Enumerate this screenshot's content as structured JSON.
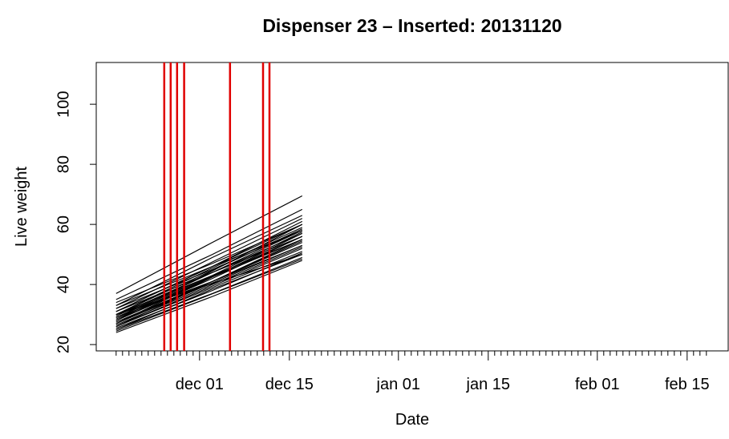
{
  "chart_data": {
    "type": "line",
    "title": "Dispenser 23 – Inserted: 20131120",
    "x_label": "Date",
    "y_label": "Live weight",
    "x": [
      -13,
      2,
      16
    ],
    "series": [
      {
        "color": "#000000",
        "values": [
          37,
          54,
          69.5
        ]
      },
      {
        "color": "#000000",
        "values": [
          35,
          50,
          65
        ]
      },
      {
        "color": "#000000",
        "values": [
          33,
          49,
          63
        ]
      },
      {
        "color": "#000000",
        "values": [
          32,
          47.5,
          62
        ]
      },
      {
        "color": "#000000",
        "values": [
          31,
          46,
          61
        ]
      },
      {
        "color": "#000000",
        "values": [
          31,
          46,
          60
        ]
      },
      {
        "color": "#000000",
        "values": [
          30,
          45.5,
          59
        ]
      },
      {
        "color": "#000000",
        "values": [
          30,
          44.7,
          58.5
        ]
      },
      {
        "color": "#000000",
        "values": [
          29.5,
          44,
          58
        ]
      },
      {
        "color": "#000000",
        "values": [
          29,
          43,
          57.5
        ]
      },
      {
        "color": "#000000",
        "values": [
          29,
          44,
          57
        ]
      },
      {
        "color": "#000000",
        "values": [
          28.5,
          42.7,
          56
        ]
      },
      {
        "color": "#000000",
        "values": [
          28,
          42,
          56
        ]
      },
      {
        "color": "#000000",
        "values": [
          28,
          42.5,
          55
        ]
      },
      {
        "color": "#000000",
        "values": [
          27.5,
          41,
          54.5
        ]
      },
      {
        "color": "#000000",
        "values": [
          27,
          41,
          54
        ]
      },
      {
        "color": "#000000",
        "values": [
          27,
          40.5,
          53
        ]
      },
      {
        "color": "#000000",
        "values": [
          26.5,
          40,
          52.5
        ]
      },
      {
        "color": "#000000",
        "values": [
          26,
          39.5,
          52
        ]
      },
      {
        "color": "#000000",
        "values": [
          26,
          39,
          51
        ]
      },
      {
        "color": "#000000",
        "values": [
          25.5,
          38,
          50.5
        ]
      },
      {
        "color": "#000000",
        "values": [
          25,
          38.5,
          50
        ]
      },
      {
        "color": "#000000",
        "values": [
          25,
          37,
          49
        ]
      },
      {
        "color": "#000000",
        "values": [
          24.5,
          36.9,
          48.5
        ]
      },
      {
        "color": "#000000",
        "values": [
          24,
          36,
          48
        ]
      },
      {
        "color": "#000000",
        "values": [
          33,
          46,
          58
        ]
      },
      {
        "color": "#000000",
        "values": [
          30,
          43,
          55
        ]
      },
      {
        "color": "#000000",
        "values": [
          28,
          44.5,
          60
        ]
      },
      {
        "color": "#000000",
        "values": [
          27,
          42.5,
          57
        ]
      },
      {
        "color": "#000000",
        "values": [
          32,
          45,
          58
        ]
      },
      {
        "color": "#000000",
        "values": [
          29,
          41,
          53
        ]
      },
      {
        "color": "#000000",
        "values": [
          31,
          44,
          56
        ]
      },
      {
        "color": "#000000",
        "values": [
          26,
          41,
          55
        ]
      },
      {
        "color": "#000000",
        "values": [
          34,
          47,
          60
        ]
      },
      {
        "color": "#000000",
        "values": [
          30,
          40.3,
          50
        ]
      }
    ],
    "vlines": {
      "color": "#e00000",
      "x": [
        -5.5,
        -4.5,
        -3.5,
        -2.4,
        4.75,
        9.9,
        10.9
      ]
    },
    "xlim": [
      -16.1,
      82.4
    ],
    "xticks": [
      {
        "value": 0,
        "label": "dec 01"
      },
      {
        "value": 14,
        "label": "dec 15"
      },
      {
        "value": 31,
        "label": "jan 01"
      },
      {
        "value": 45,
        "label": "jan 15"
      },
      {
        "value": 62,
        "label": "feb 01"
      },
      {
        "value": 76,
        "label": "feb 15"
      }
    ],
    "xminorticks": [
      -13,
      -12,
      -11,
      -10,
      -9,
      -8,
      -7,
      -6,
      -5,
      -4,
      -3,
      -2,
      -1,
      1,
      2,
      3,
      4,
      5,
      6,
      7,
      8,
      9,
      10,
      11,
      12,
      13,
      15,
      16,
      17,
      18,
      19,
      20,
      21,
      22,
      23,
      24,
      25,
      26,
      27,
      28,
      29,
      30,
      32,
      33,
      34,
      35,
      36,
      37,
      38,
      39,
      40,
      41,
      42,
      43,
      44,
      46,
      47,
      48,
      49,
      50,
      51,
      52,
      53,
      54,
      55,
      56,
      57,
      58,
      59,
      60,
      61,
      63,
      64,
      65,
      66,
      67,
      68,
      69,
      70,
      71,
      72,
      73,
      74,
      75,
      77,
      78,
      79
    ],
    "ylim": [
      17.9,
      113.9
    ],
    "yticks": [
      20,
      40,
      60,
      80,
      100
    ],
    "grid": false
  }
}
